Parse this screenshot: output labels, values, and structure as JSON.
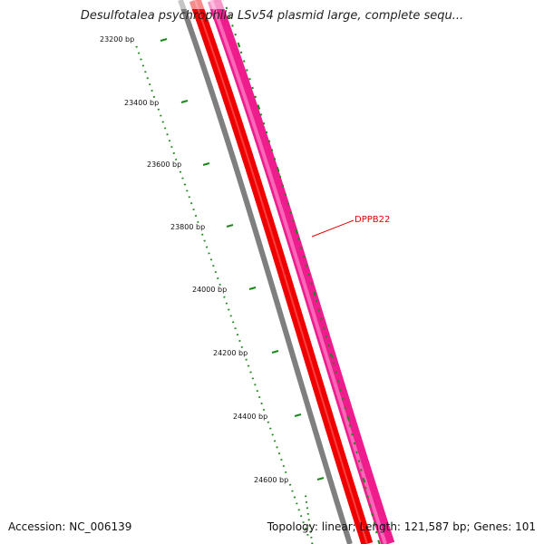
{
  "title": "Desulfotalea psychrophila LSv54 plasmid large, complete sequ...",
  "footer": {
    "accession": "Accession: NC_006139",
    "summary": "Topology: linear; Length: 121,587 bp; Genes: 101"
  },
  "ruler": {
    "start_bp": 23200,
    "major_step_bp": 200,
    "labels": [
      "23200 bp",
      "23400 bp",
      "23600 bp",
      "23800 bp",
      "24000 bp",
      "24200 bp",
      "24400 bp",
      "24600 bp"
    ],
    "color": "#1a8a1a"
  },
  "tracks": [
    {
      "name": "backbone",
      "color": "#808080"
    },
    {
      "name": "cds-strand",
      "color": "#ee0000"
    },
    {
      "name": "gene-feature",
      "color": "#ee1c8c"
    }
  ],
  "gene": {
    "label": "DPPB22",
    "color": "#e00000"
  }
}
